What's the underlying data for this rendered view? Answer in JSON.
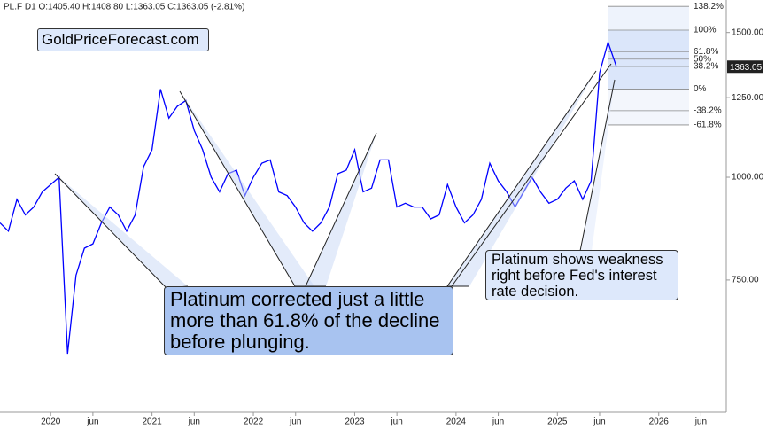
{
  "header": "PL.F  D1  O:1405.40 H:1408.80 L:1363.05 C:1363.05 (-2.81%)",
  "logo": "GoldPriceForecast.com",
  "chart_data": {
    "type": "line",
    "log_scale": true,
    "annotations": [
      "Platinum corrected just a little more than 61.8% of the decline before plunging.",
      "Platinum shows weakness right before Fed's interest rate decision."
    ],
    "x": [
      "2019-07",
      "2019-08",
      "2019-09",
      "2019-10",
      "2019-11",
      "2019-12",
      "2020-01",
      "2020-02",
      "2020-03",
      "2020-04",
      "2020-05",
      "2020-06",
      "2020-07",
      "2020-08",
      "2020-09",
      "2020-10",
      "2020-11",
      "2020-12",
      "2021-01",
      "2021-02",
      "2021-03",
      "2021-04",
      "2021-05",
      "2021-06",
      "2021-07",
      "2021-08",
      "2021-09",
      "2021-10",
      "2021-11",
      "2021-12",
      "2022-01",
      "2022-02",
      "2022-03",
      "2022-04",
      "2022-05",
      "2022-06",
      "2022-07",
      "2022-08",
      "2022-09",
      "2022-10",
      "2022-11",
      "2022-12",
      "2023-01",
      "2023-02",
      "2023-03",
      "2023-04",
      "2023-05",
      "2023-06",
      "2023-07",
      "2023-08",
      "2023-09",
      "2023-10",
      "2023-11",
      "2023-12",
      "2024-01",
      "2024-02",
      "2024-03",
      "2024-04",
      "2024-05",
      "2024-06",
      "2024-07",
      "2024-08",
      "2024-09",
      "2024-10",
      "2024-11",
      "2024-12",
      "2025-01",
      "2025-02",
      "2025-03",
      "2025-04",
      "2025-05",
      "2025-06",
      "2025-07",
      "2025-08"
    ],
    "series": [
      {
        "name": "PL.F",
        "color": "#0000ff",
        "values": [
          880,
          860,
          940,
          900,
          920,
          960,
          980,
          1000,
          610,
          760,
          820,
          830,
          880,
          920,
          900,
          860,
          900,
          1030,
          1080,
          1280,
          1180,
          1220,
          1240,
          1140,
          1080,
          1000,
          960,
          1010,
          1020,
          950,
          1000,
          1040,
          1050,
          960,
          950,
          920,
          880,
          860,
          880,
          920,
          1010,
          1020,
          1080,
          960,
          970,
          1050,
          1050,
          920,
          930,
          920,
          920,
          890,
          900,
          980,
          920,
          880,
          900,
          940,
          1040,
          990,
          960,
          920,
          960,
          1000,
          960,
          930,
          940,
          970,
          990,
          940,
          990,
          1340,
          1460,
          1363.05
        ]
      }
    ],
    "fib_levels": [
      {
        "value": 1614,
        "label": "138.2%"
      },
      {
        "value": 1510,
        "label": "100%"
      },
      {
        "value": 1422,
        "label": "61.8%"
      },
      {
        "value": 1392,
        "label": "50%"
      },
      {
        "value": 1364,
        "label": "38.2%"
      },
      {
        "value": 1280,
        "label": "0%"
      },
      {
        "value": 1205,
        "label": "-38.2%"
      },
      {
        "value": 1158,
        "label": "-61.8%"
      }
    ],
    "xlim": [
      "2019-07",
      "2026-09"
    ],
    "xticks": [
      {
        "value": "2020-01",
        "label": "2020"
      },
      {
        "value": "2020-06",
        "label": "jun"
      },
      {
        "value": "2021-01",
        "label": "2021"
      },
      {
        "value": "2021-06",
        "label": "jun"
      },
      {
        "value": "2022-01",
        "label": "2022"
      },
      {
        "value": "2022-06",
        "label": "jun"
      },
      {
        "value": "2023-01",
        "label": "2023"
      },
      {
        "value": "2023-06",
        "label": "jun"
      },
      {
        "value": "2024-01",
        "label": "2024"
      },
      {
        "value": "2024-06",
        "label": "jun"
      },
      {
        "value": "2025-01",
        "label": "2025"
      },
      {
        "value": "2025-06",
        "label": "jun"
      },
      {
        "value": "2026-01",
        "label": "2026"
      },
      {
        "value": "2026-06",
        "label": "jun"
      }
    ],
    "ylim": [
      518,
      1643
    ],
    "yticks": [
      {
        "value": 750,
        "label": "750.00"
      },
      {
        "value": 1000,
        "label": "1000.00"
      },
      {
        "value": 1250,
        "label": "1250.00"
      },
      {
        "value": 1500,
        "label": "1500.00"
      }
    ]
  }
}
